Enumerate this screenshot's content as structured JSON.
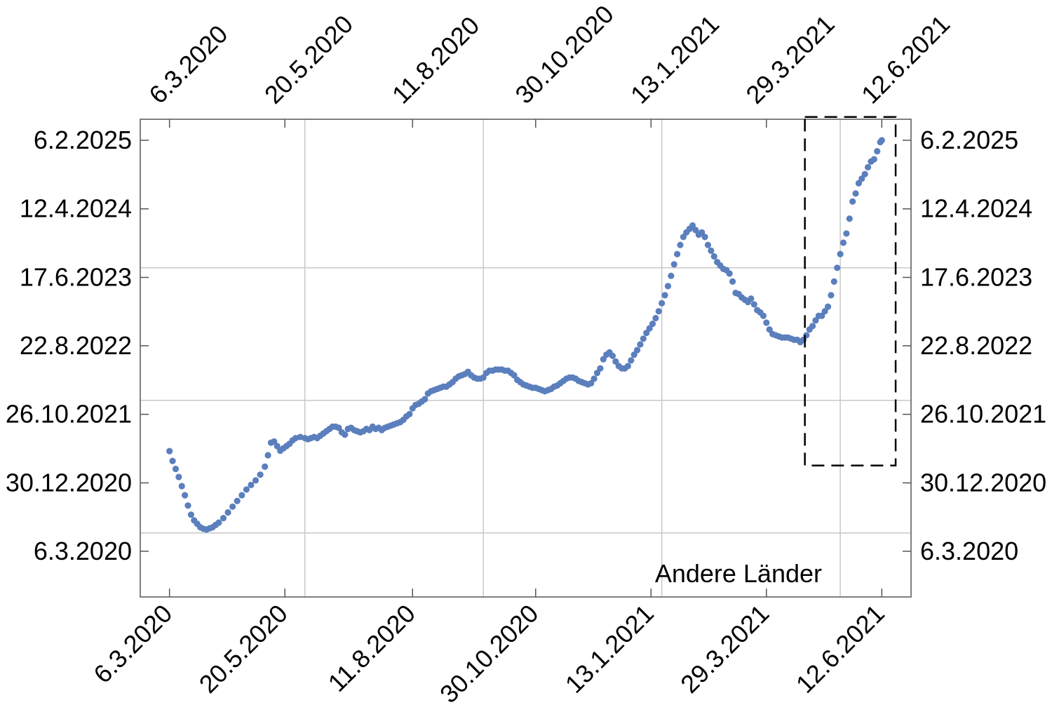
{
  "chart_data": {
    "type": "scatter",
    "title": "",
    "xlabel": "",
    "ylabel": "",
    "annotation": "Andere Länder",
    "grid": true,
    "colors": {
      "points": "#5b7fbd",
      "grid": "#c8c8c8",
      "frame": "#555555",
      "box": "#000000"
    },
    "x_ticks": [
      {
        "label": "6.3.2020",
        "day": 0
      },
      {
        "label": "20.5.2020",
        "day": 75
      },
      {
        "label": "11.8.2020",
        "day": 158
      },
      {
        "label": "30.10.2020",
        "day": 238
      },
      {
        "label": "13.1.2021",
        "day": 313
      },
      {
        "label": "29.3.2021",
        "day": 388
      },
      {
        "label": "12.6.2021",
        "day": 463
      }
    ],
    "y_ticks": [
      {
        "label": "6.3.2020",
        "day": 0
      },
      {
        "label": "30.12.2020",
        "day": 299
      },
      {
        "label": "26.10.2021",
        "day": 599
      },
      {
        "label": "22.8.2022",
        "day": 899
      },
      {
        "label": "17.6.2023",
        "day": 1198
      },
      {
        "label": "12.4.2024",
        "day": 1498
      },
      {
        "label": "6.2.2025",
        "day": 1798
      }
    ],
    "x_gridlines": [
      88,
      204,
      320,
      436
    ],
    "y_gridlines": [
      80,
      660,
      1240
    ],
    "xlim": [
      -19,
      482
    ],
    "ylim": [
      -200,
      1890
    ],
    "highlight_box": {
      "x": [
        413,
        472
      ],
      "y": [
        375,
        1900
      ]
    },
    "points": [
      [
        0,
        438
      ],
      [
        2,
        395
      ],
      [
        4,
        360
      ],
      [
        6,
        325
      ],
      [
        8,
        285
      ],
      [
        10,
        245
      ],
      [
        12,
        200
      ],
      [
        14,
        160
      ],
      [
        16,
        135
      ],
      [
        18,
        120
      ],
      [
        20,
        105
      ],
      [
        22,
        98
      ],
      [
        24,
        95
      ],
      [
        26,
        100
      ],
      [
        28,
        105
      ],
      [
        30,
        115
      ],
      [
        32,
        125
      ],
      [
        35,
        145
      ],
      [
        38,
        170
      ],
      [
        41,
        195
      ],
      [
        44,
        220
      ],
      [
        47,
        245
      ],
      [
        50,
        270
      ],
      [
        53,
        290
      ],
      [
        56,
        310
      ],
      [
        59,
        335
      ],
      [
        62,
        370
      ],
      [
        64,
        420
      ],
      [
        66,
        475
      ],
      [
        68,
        480
      ],
      [
        70,
        460
      ],
      [
        72,
        440
      ],
      [
        74,
        450
      ],
      [
        76,
        460
      ],
      [
        78,
        470
      ],
      [
        80,
        485
      ],
      [
        82,
        495
      ],
      [
        85,
        500
      ],
      [
        88,
        495
      ],
      [
        90,
        490
      ],
      [
        92,
        495
      ],
      [
        94,
        500
      ],
      [
        96,
        495
      ],
      [
        98,
        505
      ],
      [
        100,
        515
      ],
      [
        102,
        525
      ],
      [
        104,
        535
      ],
      [
        106,
        545
      ],
      [
        108,
        545
      ],
      [
        110,
        540
      ],
      [
        112,
        520
      ],
      [
        114,
        510
      ],
      [
        116,
        535
      ],
      [
        118,
        540
      ],
      [
        120,
        530
      ],
      [
        122,
        525
      ],
      [
        124,
        520
      ],
      [
        126,
        525
      ],
      [
        128,
        535
      ],
      [
        130,
        530
      ],
      [
        132,
        545
      ],
      [
        134,
        535
      ],
      [
        136,
        540
      ],
      [
        138,
        530
      ],
      [
        140,
        540
      ],
      [
        142,
        545
      ],
      [
        144,
        550
      ],
      [
        146,
        555
      ],
      [
        148,
        560
      ],
      [
        150,
        565
      ],
      [
        152,
        575
      ],
      [
        154,
        590
      ],
      [
        156,
        600
      ],
      [
        158,
        625
      ],
      [
        160,
        640
      ],
      [
        162,
        645
      ],
      [
        164,
        655
      ],
      [
        166,
        665
      ],
      [
        168,
        690
      ],
      [
        170,
        700
      ],
      [
        172,
        705
      ],
      [
        174,
        710
      ],
      [
        176,
        715
      ],
      [
        178,
        720
      ],
      [
        180,
        720
      ],
      [
        182,
        730
      ],
      [
        184,
        740
      ],
      [
        186,
        755
      ],
      [
        188,
        765
      ],
      [
        190,
        770
      ],
      [
        192,
        775
      ],
      [
        194,
        785
      ],
      [
        196,
        770
      ],
      [
        198,
        760
      ],
      [
        200,
        755
      ],
      [
        202,
        755
      ],
      [
        204,
        760
      ],
      [
        206,
        780
      ],
      [
        208,
        790
      ],
      [
        210,
        790
      ],
      [
        212,
        795
      ],
      [
        214,
        795
      ],
      [
        216,
        795
      ],
      [
        218,
        790
      ],
      [
        220,
        790
      ],
      [
        222,
        780
      ],
      [
        224,
        770
      ],
      [
        226,
        750
      ],
      [
        228,
        740
      ],
      [
        230,
        730
      ],
      [
        232,
        725
      ],
      [
        234,
        720
      ],
      [
        236,
        715
      ],
      [
        238,
        715
      ],
      [
        240,
        710
      ],
      [
        242,
        705
      ],
      [
        244,
        700
      ],
      [
        246,
        705
      ],
      [
        248,
        710
      ],
      [
        250,
        720
      ],
      [
        252,
        725
      ],
      [
        254,
        735
      ],
      [
        256,
        745
      ],
      [
        258,
        755
      ],
      [
        260,
        760
      ],
      [
        262,
        760
      ],
      [
        264,
        755
      ],
      [
        266,
        745
      ],
      [
        268,
        740
      ],
      [
        270,
        735
      ],
      [
        272,
        730
      ],
      [
        274,
        735
      ],
      [
        276,
        755
      ],
      [
        278,
        780
      ],
      [
        280,
        800
      ],
      [
        282,
        840
      ],
      [
        284,
        860
      ],
      [
        286,
        870
      ],
      [
        288,
        855
      ],
      [
        290,
        830
      ],
      [
        292,
        810
      ],
      [
        294,
        800
      ],
      [
        296,
        800
      ],
      [
        298,
        810
      ],
      [
        300,
        835
      ],
      [
        302,
        860
      ],
      [
        304,
        880
      ],
      [
        306,
        905
      ],
      [
        308,
        930
      ],
      [
        310,
        955
      ],
      [
        312,
        975
      ],
      [
        314,
        995
      ],
      [
        316,
        1020
      ],
      [
        318,
        1050
      ],
      [
        320,
        1085
      ],
      [
        322,
        1120
      ],
      [
        324,
        1160
      ],
      [
        326,
        1205
      ],
      [
        328,
        1255
      ],
      [
        330,
        1300
      ],
      [
        332,
        1340
      ],
      [
        334,
        1375
      ],
      [
        336,
        1395
      ],
      [
        338,
        1410
      ],
      [
        340,
        1425
      ],
      [
        342,
        1405
      ],
      [
        344,
        1385
      ],
      [
        346,
        1395
      ],
      [
        348,
        1375
      ],
      [
        350,
        1340
      ],
      [
        352,
        1315
      ],
      [
        354,
        1290
      ],
      [
        356,
        1265
      ],
      [
        358,
        1250
      ],
      [
        360,
        1235
      ],
      [
        362,
        1230
      ],
      [
        364,
        1215
      ],
      [
        366,
        1180
      ],
      [
        368,
        1130
      ],
      [
        370,
        1125
      ],
      [
        372,
        1110
      ],
      [
        374,
        1100
      ],
      [
        376,
        1090
      ],
      [
        378,
        1105
      ],
      [
        380,
        1080
      ],
      [
        382,
        1055
      ],
      [
        384,
        1045
      ],
      [
        386,
        1030
      ],
      [
        388,
        1000
      ],
      [
        390,
        970
      ],
      [
        392,
        950
      ],
      [
        394,
        945
      ],
      [
        396,
        940
      ],
      [
        398,
        935
      ],
      [
        400,
        935
      ],
      [
        402,
        935
      ],
      [
        404,
        930
      ],
      [
        406,
        925
      ],
      [
        408,
        925
      ],
      [
        410,
        915
      ],
      [
        412,
        925
      ],
      [
        414,
        945
      ],
      [
        416,
        970
      ],
      [
        418,
        985
      ],
      [
        420,
        1010
      ],
      [
        422,
        1030
      ],
      [
        424,
        1030
      ],
      [
        426,
        1050
      ],
      [
        428,
        1070
      ],
      [
        430,
        1120
      ],
      [
        432,
        1180
      ],
      [
        434,
        1240
      ],
      [
        436,
        1300
      ],
      [
        438,
        1350
      ],
      [
        440,
        1390
      ],
      [
        442,
        1455
      ],
      [
        444,
        1530
      ],
      [
        446,
        1565
      ],
      [
        448,
        1610
      ],
      [
        450,
        1630
      ],
      [
        452,
        1650
      ],
      [
        454,
        1680
      ],
      [
        456,
        1705
      ],
      [
        458,
        1715
      ],
      [
        460,
        1750
      ],
      [
        462,
        1790
      ],
      [
        463,
        1798
      ]
    ]
  }
}
